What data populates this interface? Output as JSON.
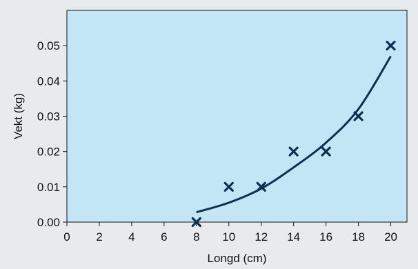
{
  "chart_data": {
    "type": "scatter",
    "title": "",
    "xlabel": "Longd (cm)",
    "ylabel": "Vekt (kg)",
    "xlim": [
      0,
      21
    ],
    "ylim": [
      0,
      0.06
    ],
    "x_ticks": [
      0,
      2,
      4,
      6,
      8,
      10,
      12,
      14,
      16,
      18,
      20
    ],
    "x_tick_labels": [
      "0",
      "2",
      "4",
      "6",
      "8",
      "10",
      "12",
      "14",
      "16",
      "18",
      "20"
    ],
    "y_ticks": [
      0,
      0.01,
      0.02,
      0.03,
      0.04,
      0.05
    ],
    "y_tick_labels": [
      "0.00",
      "0.01",
      "0.02",
      "0.03",
      "0.04",
      "0.05"
    ],
    "grid": false,
    "marker": "x",
    "series": [
      {
        "x": [
          8,
          10,
          12,
          14,
          16,
          18,
          20
        ],
        "y": [
          0.0,
          0.01,
          0.01,
          0.02,
          0.02,
          0.03,
          0.05
        ]
      }
    ],
    "trend_line": {
      "type": "curve",
      "x": [
        8,
        10,
        12,
        14,
        16,
        18,
        20
      ],
      "y": [
        0.0028,
        0.0055,
        0.0095,
        0.0155,
        0.0225,
        0.032,
        0.047
      ]
    },
    "colors": {
      "plot_background": "#c3e6f6",
      "page_background": "#e8eaed",
      "marker": "#0f2e4f",
      "line": "#0f2e4f",
      "axis": "#111111"
    }
  }
}
